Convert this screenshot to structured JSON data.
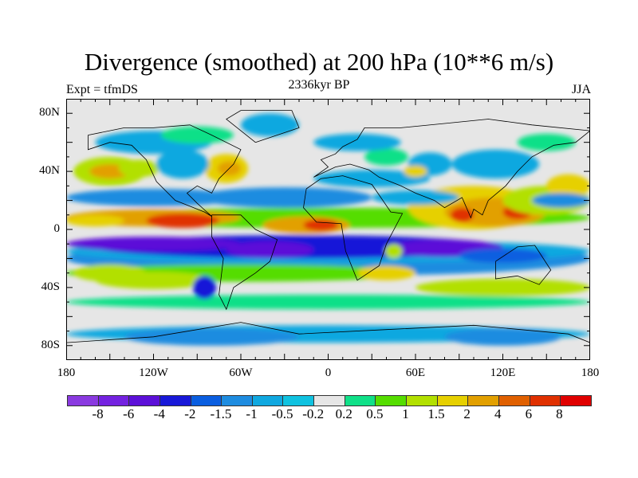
{
  "title": "Divergence (smoothed) at 200 hPa (10**6 m/s)",
  "left_string": "Expt = tfmDS",
  "center_string": "2336kyr BP",
  "right_string": "JJA",
  "chart_data": {
    "type": "heatmap",
    "title": "Divergence (smoothed) at 200 hPa (10**6 m/s)",
    "projection": "cylindrical equidistant",
    "lon_range": [
      -180,
      180
    ],
    "lat_range": [
      -90,
      90
    ],
    "lat_ticks": [
      {
        "value": 80,
        "label": "80N"
      },
      {
        "value": 40,
        "label": "40N"
      },
      {
        "value": 0,
        "label": "0"
      },
      {
        "value": -40,
        "label": "40S"
      },
      {
        "value": -80,
        "label": "80S"
      }
    ],
    "lon_ticks": [
      {
        "value": -180,
        "label": "180"
      },
      {
        "value": -120,
        "label": "120W"
      },
      {
        "value": -60,
        "label": "60W"
      },
      {
        "value": 0,
        "label": "0"
      },
      {
        "value": 60,
        "label": "60E"
      },
      {
        "value": 120,
        "label": "120E"
      },
      {
        "value": 180,
        "label": "180"
      }
    ],
    "colorbar": {
      "levels": [
        "-8",
        "-6",
        "-4",
        "-2",
        "-1.5",
        "-1",
        "-0.5",
        "-0.2",
        "0.2",
        "0.5",
        "1",
        "1.5",
        "2",
        "4",
        "6",
        "8"
      ],
      "colors": [
        "#8a3ae0",
        "#7422e0",
        "#5c10d8",
        "#1818d8",
        "#0a5ee0",
        "#1e8ce0",
        "#10a8e0",
        "#10c2e0",
        "#e6e6e6",
        "#10e088",
        "#55dd00",
        "#b2e000",
        "#e6d000",
        "#e2a000",
        "#e06000",
        "#e03000",
        "#e00000"
      ]
    }
  }
}
